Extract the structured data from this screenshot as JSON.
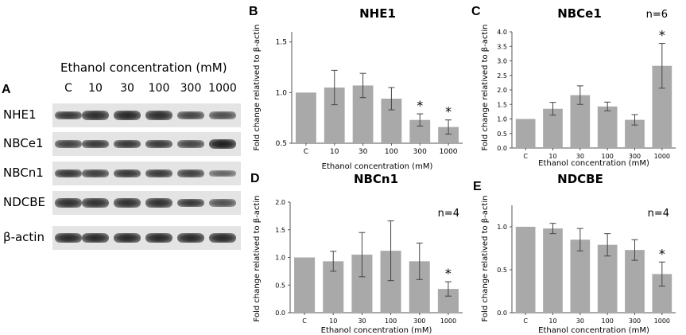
{
  "panel_a": {
    "letter": "A",
    "title": "Ethanol concentration (mM)",
    "concentrations": [
      "C",
      "10",
      "30",
      "100",
      "300",
      "1000"
    ],
    "rows": [
      {
        "label": "NHE1",
        "intensity": [
          0.8,
          0.88,
          0.92,
          0.88,
          0.7,
          0.62
        ]
      },
      {
        "label": "NBCe1",
        "intensity": [
          0.72,
          0.78,
          0.8,
          0.78,
          0.7,
          1.0
        ]
      },
      {
        "label": "NBCn1",
        "intensity": [
          0.8,
          0.74,
          0.8,
          0.78,
          0.72,
          0.45
        ]
      },
      {
        "label": "NDCBE",
        "intensity": [
          0.85,
          0.85,
          0.85,
          0.85,
          0.8,
          0.6
        ]
      },
      {
        "label": "β-actin",
        "intensity": [
          0.9,
          0.9,
          0.9,
          0.9,
          0.9,
          0.9
        ]
      }
    ]
  },
  "chart_data": [
    {
      "letter": "B",
      "type": "bar",
      "title": "NHE1",
      "n_label": "",
      "xlabel": "Ethanol concentration (mM)",
      "ylabel": "Fold change relatived to β-actin",
      "categories": [
        "C",
        "10",
        "30",
        "100",
        "300",
        "1000"
      ],
      "values": [
        1.0,
        1.05,
        1.07,
        0.94,
        0.73,
        0.66
      ],
      "errors": [
        0.0,
        0.17,
        0.12,
        0.11,
        0.06,
        0.07
      ],
      "significant": [
        false,
        false,
        false,
        false,
        true,
        true
      ],
      "ylim": [
        0.5,
        1.6
      ],
      "yticks": [
        "0.5",
        "1.0",
        "1.5"
      ],
      "ytick_values": [
        0.5,
        1.0,
        1.5
      ]
    },
    {
      "letter": "C",
      "type": "bar",
      "title": "NBCe1",
      "n_label": "n=6",
      "xlabel": "Ethanol concentration (mM)",
      "ylabel": "Fold change relatived to β-actin",
      "categories": [
        "C",
        "10",
        "30",
        "100",
        "300",
        "1000"
      ],
      "values": [
        1.0,
        1.35,
        1.82,
        1.43,
        0.97,
        2.83
      ],
      "errors": [
        0.0,
        0.22,
        0.32,
        0.15,
        0.18,
        0.77
      ],
      "significant": [
        false,
        false,
        false,
        false,
        false,
        true
      ],
      "ylim": [
        0,
        4.0
      ],
      "yticks": [
        "0.0",
        "0.5",
        "1.0",
        "1.5",
        "2.0",
        "2.5",
        "3.0",
        "3.5",
        "4.0"
      ],
      "ytick_values": [
        0,
        0.5,
        1.0,
        1.5,
        2.0,
        2.5,
        3.0,
        3.5,
        4.0
      ]
    },
    {
      "letter": "D",
      "type": "bar",
      "title": "NBCn1",
      "n_label": "n=4",
      "xlabel": "Ethanol concentration (mM)",
      "ylabel": "Fold change relatived to β-actin",
      "categories": [
        "C",
        "10",
        "30",
        "100",
        "300",
        "1000"
      ],
      "values": [
        1.0,
        0.93,
        1.05,
        1.12,
        0.93,
        0.43
      ],
      "errors": [
        0.0,
        0.18,
        0.4,
        0.54,
        0.33,
        0.13
      ],
      "significant": [
        false,
        false,
        false,
        false,
        false,
        true
      ],
      "ylim": [
        0,
        2.0
      ],
      "yticks": [
        "0.0",
        "0.5",
        "1.0",
        "1.5",
        "2.0"
      ],
      "ytick_values": [
        0,
        0.5,
        1.0,
        1.5,
        2.0
      ]
    },
    {
      "letter": "E",
      "type": "bar",
      "title": "NDCBE",
      "n_label": "n=4",
      "xlabel": "Ethanol concentration (mM)",
      "ylabel": "Fold change relatived to β-actin",
      "categories": [
        "C",
        "10",
        "30",
        "100",
        "300",
        "1000"
      ],
      "values": [
        1.0,
        0.98,
        0.85,
        0.79,
        0.73,
        0.45
      ],
      "errors": [
        0.0,
        0.06,
        0.13,
        0.13,
        0.12,
        0.14
      ],
      "significant": [
        false,
        false,
        false,
        false,
        false,
        true
      ],
      "ylim": [
        0,
        1.25
      ],
      "yticks": [
        "0.0",
        "0.5",
        "1.0"
      ],
      "ytick_values": [
        0,
        0.5,
        1.0
      ]
    }
  ],
  "colors": {
    "bar": "#a9a9a9",
    "axis": "#555555",
    "text": "#000000"
  },
  "significance_marker": "*"
}
